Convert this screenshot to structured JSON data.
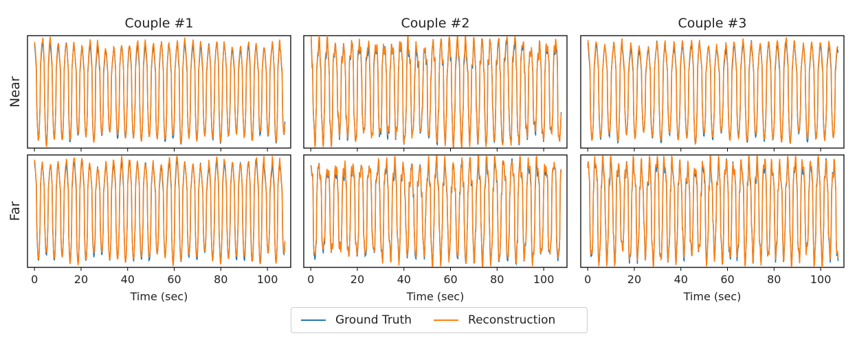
{
  "colors": {
    "ground_truth": "#1f77b4",
    "reconstruction": "#ff7f0e"
  },
  "legend": {
    "position": "bottom-center",
    "items": [
      "Ground Truth",
      "Reconstruction"
    ]
  },
  "row_labels": [
    "Near",
    "Far"
  ],
  "col_titles": [
    "Couple #1",
    "Couple #2",
    "Couple #3"
  ],
  "chart_data": [
    {
      "type": "line",
      "title": "Couple #1",
      "row": "Near",
      "xlabel": "",
      "xlim": [
        -3,
        110
      ],
      "xticks": [
        0,
        20,
        40,
        60,
        80,
        100
      ],
      "xtick_labels_shown": false,
      "y_ticks_shown": false,
      "ylim": [
        -1.12,
        1.12
      ],
      "period_sec": 3.4,
      "series": [
        {
          "name": "Ground Truth"
        },
        {
          "name": "Reconstruction"
        }
      ]
    },
    {
      "type": "line",
      "title": "Couple #2",
      "row": "Near",
      "xlabel": "",
      "xlim": [
        -3,
        110
      ],
      "xticks": [
        0,
        20,
        40,
        60,
        80,
        100
      ],
      "xtick_labels_shown": false,
      "y_ticks_shown": false,
      "ylim": [
        -1.12,
        1.12
      ],
      "period_sec": 3.5,
      "series": [
        {
          "name": "Ground Truth"
        },
        {
          "name": "Reconstruction"
        }
      ]
    },
    {
      "type": "line",
      "title": "Couple #3",
      "row": "Near",
      "xlabel": "",
      "xlim": [
        -3,
        110
      ],
      "xticks": [
        0,
        20,
        40,
        60,
        80,
        100
      ],
      "xtick_labels_shown": false,
      "y_ticks_shown": false,
      "ylim": [
        -1.12,
        1.12
      ],
      "period_sec": 3.7,
      "series": [
        {
          "name": "Ground Truth"
        },
        {
          "name": "Reconstruction"
        }
      ]
    },
    {
      "type": "line",
      "title": "",
      "row": "Far",
      "xlabel": "Time (sec)",
      "xlim": [
        -3,
        110
      ],
      "xticks": [
        0,
        20,
        40,
        60,
        80,
        100
      ],
      "xtick_labels_shown": true,
      "y_ticks_shown": false,
      "ylim": [
        -1.12,
        1.12
      ],
      "period_sec": 3.4,
      "series": [
        {
          "name": "Ground Truth"
        },
        {
          "name": "Reconstruction"
        }
      ]
    },
    {
      "type": "line",
      "title": "",
      "row": "Far",
      "xlabel": "Time (sec)",
      "xlim": [
        -3,
        110
      ],
      "xticks": [
        0,
        20,
        40,
        60,
        80,
        100
      ],
      "xtick_labels_shown": true,
      "y_ticks_shown": false,
      "ylim": [
        -1.12,
        1.12
      ],
      "period_sec": 3.6,
      "series": [
        {
          "name": "Ground Truth"
        },
        {
          "name": "Reconstruction"
        }
      ]
    },
    {
      "type": "line",
      "title": "",
      "row": "Far",
      "xlabel": "Time (sec)",
      "xlim": [
        -3,
        110
      ],
      "xticks": [
        0,
        20,
        40,
        60,
        80,
        100
      ],
      "xtick_labels_shown": true,
      "y_ticks_shown": false,
      "ylim": [
        -1.12,
        1.12
      ],
      "period_sec": 3.3,
      "series": [
        {
          "name": "Ground Truth"
        },
        {
          "name": "Reconstruction"
        }
      ]
    }
  ]
}
